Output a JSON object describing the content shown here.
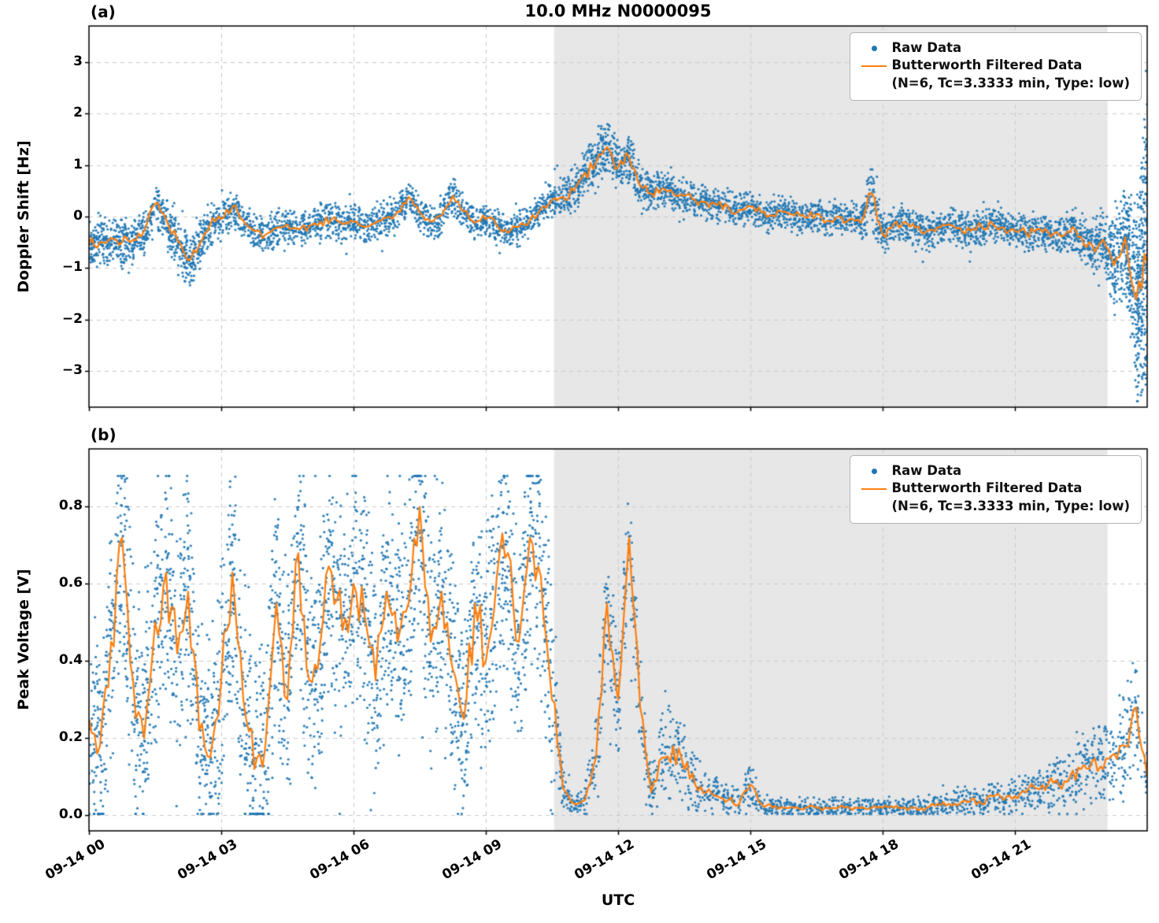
{
  "title": "10.0 MHz N0000095",
  "xlabel": "UTC",
  "panels": [
    {
      "label": "(a)",
      "ylabel": "Doppler Shift [Hz]"
    },
    {
      "label": "(b)",
      "ylabel": "Peak Voltage [V]"
    }
  ],
  "legend": {
    "raw_label": "Raw Data",
    "filtered_label": "Butterworth Filtered Data",
    "filtered_sublabel": "(N=6, Tc=3.3333 min, Type: low)"
  },
  "colors": {
    "raw": "#1f77b4",
    "filtered": "#ff7f0e",
    "shade": "#e7e7e7",
    "grid": "#c9c9c9",
    "spine": "#000000"
  },
  "x_axis": {
    "xlim_hours": [
      0,
      24
    ],
    "xtick_hours": [
      0,
      3,
      6,
      9,
      12,
      15,
      18,
      21
    ],
    "xtick_labels": [
      "09-14 00",
      "09-14 03",
      "09-14 06",
      "09-14 09",
      "09-14 12",
      "09-14 15",
      "09-14 18",
      "09-14 21"
    ],
    "shaded_region_hours": [
      10.55,
      23.1
    ]
  },
  "chart_data": [
    {
      "type": "scatter",
      "panel": "(a)",
      "title": "10.0 MHz N0000095",
      "ylabel": "Doppler Shift [Hz]",
      "xlabel": "UTC",
      "ylim": [
        -3.7,
        3.7
      ],
      "yticks": [
        3,
        2,
        1,
        0,
        -1,
        -2,
        -3
      ],
      "ytick_labels": [
        "3",
        "2",
        "1",
        "0",
        "−1",
        "−2",
        "−3"
      ],
      "series": [
        {
          "name": "Raw Data",
          "style": "scatter",
          "color": "#1f77b4"
        },
        {
          "name": "Butterworth Filtered Data (N=6, Tc=3.3333 min, Type: low)",
          "style": "line",
          "color": "#ff7f0e"
        }
      ],
      "x_hours": [
        0,
        0.25,
        0.5,
        0.75,
        1,
        1.25,
        1.5,
        1.75,
        2,
        2.25,
        2.5,
        2.75,
        3,
        3.25,
        3.5,
        3.75,
        4,
        4.25,
        4.5,
        4.75,
        5,
        5.25,
        5.5,
        5.75,
        6,
        6.25,
        6.5,
        6.75,
        7,
        7.25,
        7.5,
        7.75,
        8,
        8.25,
        8.5,
        8.75,
        9,
        9.25,
        9.5,
        9.75,
        10,
        10.25,
        10.5,
        10.75,
        11,
        11.25,
        11.5,
        11.75,
        12,
        12.25,
        12.5,
        12.75,
        13,
        13.25,
        13.5,
        13.75,
        14,
        14.25,
        14.5,
        14.75,
        15,
        15.25,
        15.5,
        15.75,
        16,
        16.25,
        16.5,
        16.75,
        17,
        17.25,
        17.5,
        17.75,
        18,
        18.25,
        18.5,
        18.75,
        19,
        19.25,
        19.5,
        19.75,
        20,
        20.25,
        20.5,
        20.75,
        21,
        21.25,
        21.5,
        21.75,
        22,
        22.25,
        22.5,
        22.75,
        23,
        23.25,
        23.5,
        23.75,
        24
      ],
      "filtered": [
        -0.55,
        -0.5,
        -0.42,
        -0.5,
        -0.45,
        -0.28,
        0.25,
        -0.05,
        -0.45,
        -0.85,
        -0.55,
        -0.15,
        -0.05,
        0.18,
        -0.08,
        -0.28,
        -0.35,
        -0.22,
        -0.15,
        -0.25,
        -0.18,
        -0.1,
        -0.05,
        -0.15,
        -0.1,
        -0.2,
        -0.12,
        -0.02,
        0.1,
        0.38,
        0.08,
        -0.1,
        0.02,
        0.4,
        0.1,
        -0.12,
        -0.05,
        -0.18,
        -0.32,
        -0.2,
        -0.08,
        0.15,
        0.32,
        0.38,
        0.5,
        0.85,
        1.05,
        1.35,
        0.95,
        1.15,
        0.6,
        0.45,
        0.55,
        0.45,
        0.4,
        0.32,
        0.28,
        0.22,
        0.18,
        0.12,
        0.2,
        0.08,
        0.02,
        0.1,
        0.02,
        -0.02,
        0.05,
        -0.08,
        0,
        -0.05,
        -0.12,
        0.45,
        -0.35,
        -0.15,
        -0.1,
        -0.22,
        -0.28,
        -0.2,
        -0.15,
        -0.22,
        -0.28,
        -0.2,
        -0.15,
        -0.22,
        -0.28,
        -0.32,
        -0.25,
        -0.3,
        -0.35,
        -0.3,
        -0.4,
        -0.55,
        -0.45,
        -0.95,
        -0.4,
        -1.6,
        -0.9
      ],
      "raw_spread": [
        0.45,
        0.45,
        0.42,
        0.45,
        0.42,
        0.4,
        0.35,
        0.45,
        0.5,
        0.5,
        0.45,
        0.38,
        0.32,
        0.32,
        0.32,
        0.32,
        0.32,
        0.32,
        0.32,
        0.32,
        0.32,
        0.32,
        0.32,
        0.32,
        0.32,
        0.32,
        0.32,
        0.32,
        0.32,
        0.32,
        0.32,
        0.32,
        0.32,
        0.32,
        0.32,
        0.32,
        0.32,
        0.32,
        0.32,
        0.32,
        0.3,
        0.3,
        0.32,
        0.35,
        0.4,
        0.45,
        0.5,
        0.5,
        0.45,
        0.45,
        0.38,
        0.35,
        0.35,
        0.3,
        0.3,
        0.3,
        0.3,
        0.3,
        0.3,
        0.3,
        0.3,
        0.3,
        0.3,
        0.3,
        0.3,
        0.3,
        0.3,
        0.3,
        0.3,
        0.3,
        0.3,
        0.6,
        0.35,
        0.32,
        0.32,
        0.32,
        0.32,
        0.32,
        0.32,
        0.32,
        0.32,
        0.32,
        0.32,
        0.32,
        0.32,
        0.32,
        0.32,
        0.32,
        0.32,
        0.4,
        0.45,
        0.5,
        0.55,
        0.8,
        0.9,
        1.7,
        3.2
      ]
    },
    {
      "type": "scatter",
      "panel": "(b)",
      "ylabel": "Peak Voltage [V]",
      "xlabel": "UTC",
      "ylim": [
        -0.04,
        0.95
      ],
      "yticks": [
        0.8,
        0.6,
        0.4,
        0.2,
        0.0
      ],
      "ytick_labels": [
        "0.8",
        "0.6",
        "0.4",
        "0.2",
        "0.0"
      ],
      "series": [
        {
          "name": "Raw Data",
          "style": "scatter",
          "color": "#1f77b4"
        },
        {
          "name": "Butterworth Filtered Data (N=6, Tc=3.3333 min, Type: low)",
          "style": "line",
          "color": "#ff7f0e"
        }
      ],
      "x_hours": [
        0,
        0.25,
        0.5,
        0.75,
        1,
        1.25,
        1.5,
        1.75,
        2,
        2.25,
        2.5,
        2.75,
        3,
        3.25,
        3.5,
        3.75,
        4,
        4.25,
        4.5,
        4.75,
        5,
        5.25,
        5.5,
        5.75,
        6,
        6.25,
        6.5,
        6.75,
        7,
        7.25,
        7.5,
        7.75,
        8,
        8.25,
        8.5,
        8.75,
        9,
        9.25,
        9.5,
        9.75,
        10,
        10.25,
        10.5,
        10.75,
        11,
        11.25,
        11.5,
        11.75,
        12,
        12.25,
        12.5,
        12.75,
        13,
        13.25,
        13.5,
        13.75,
        14,
        14.25,
        14.5,
        14.75,
        15,
        15.25,
        15.5,
        15.75,
        16,
        16.25,
        16.5,
        16.75,
        17,
        17.25,
        17.5,
        17.75,
        18,
        18.25,
        18.5,
        18.75,
        19,
        19.25,
        19.5,
        19.75,
        20,
        20.25,
        20.5,
        20.75,
        21,
        21.25,
        21.5,
        21.75,
        22,
        22.25,
        22.5,
        22.75,
        23,
        23.25,
        23.5,
        23.75,
        24
      ],
      "filtered": [
        0.25,
        0.18,
        0.45,
        0.72,
        0.35,
        0.2,
        0.5,
        0.63,
        0.42,
        0.58,
        0.22,
        0.15,
        0.35,
        0.63,
        0.3,
        0.12,
        0.18,
        0.55,
        0.3,
        0.68,
        0.35,
        0.45,
        0.63,
        0.48,
        0.6,
        0.52,
        0.35,
        0.58,
        0.45,
        0.55,
        0.8,
        0.45,
        0.58,
        0.38,
        0.25,
        0.55,
        0.4,
        0.62,
        0.68,
        0.45,
        0.72,
        0.62,
        0.3,
        0.07,
        0.03,
        0.04,
        0.15,
        0.55,
        0.3,
        0.72,
        0.28,
        0.06,
        0.15,
        0.18,
        0.12,
        0.08,
        0.06,
        0.05,
        0.04,
        0.03,
        0.08,
        0.03,
        0.02,
        0.02,
        0.02,
        0.02,
        0.02,
        0.02,
        0.02,
        0.02,
        0.02,
        0.02,
        0.02,
        0.02,
        0.02,
        0.02,
        0.02,
        0.03,
        0.03,
        0.03,
        0.04,
        0.03,
        0.05,
        0.04,
        0.05,
        0.06,
        0.07,
        0.08,
        0.08,
        0.1,
        0.12,
        0.14,
        0.12,
        0.16,
        0.18,
        0.28,
        0.1
      ],
      "raw_spread": [
        0.28,
        0.28,
        0.28,
        0.28,
        0.28,
        0.28,
        0.28,
        0.28,
        0.28,
        0.28,
        0.28,
        0.28,
        0.28,
        0.28,
        0.28,
        0.28,
        0.28,
        0.28,
        0.28,
        0.28,
        0.28,
        0.28,
        0.28,
        0.28,
        0.28,
        0.28,
        0.28,
        0.28,
        0.28,
        0.28,
        0.28,
        0.28,
        0.28,
        0.28,
        0.28,
        0.28,
        0.28,
        0.28,
        0.28,
        0.28,
        0.28,
        0.28,
        0.28,
        0.05,
        0.03,
        0.04,
        0.1,
        0.18,
        0.15,
        0.15,
        0.15,
        0.05,
        0.12,
        0.12,
        0.1,
        0.08,
        0.05,
        0.04,
        0.04,
        0.03,
        0.06,
        0.03,
        0.025,
        0.025,
        0.025,
        0.025,
        0.025,
        0.025,
        0.025,
        0.025,
        0.025,
        0.025,
        0.025,
        0.025,
        0.025,
        0.025,
        0.03,
        0.03,
        0.03,
        0.03,
        0.035,
        0.035,
        0.035,
        0.035,
        0.05,
        0.05,
        0.05,
        0.06,
        0.06,
        0.08,
        0.09,
        0.1,
        0.1,
        0.12,
        0.14,
        0.12,
        0.08
      ]
    }
  ]
}
